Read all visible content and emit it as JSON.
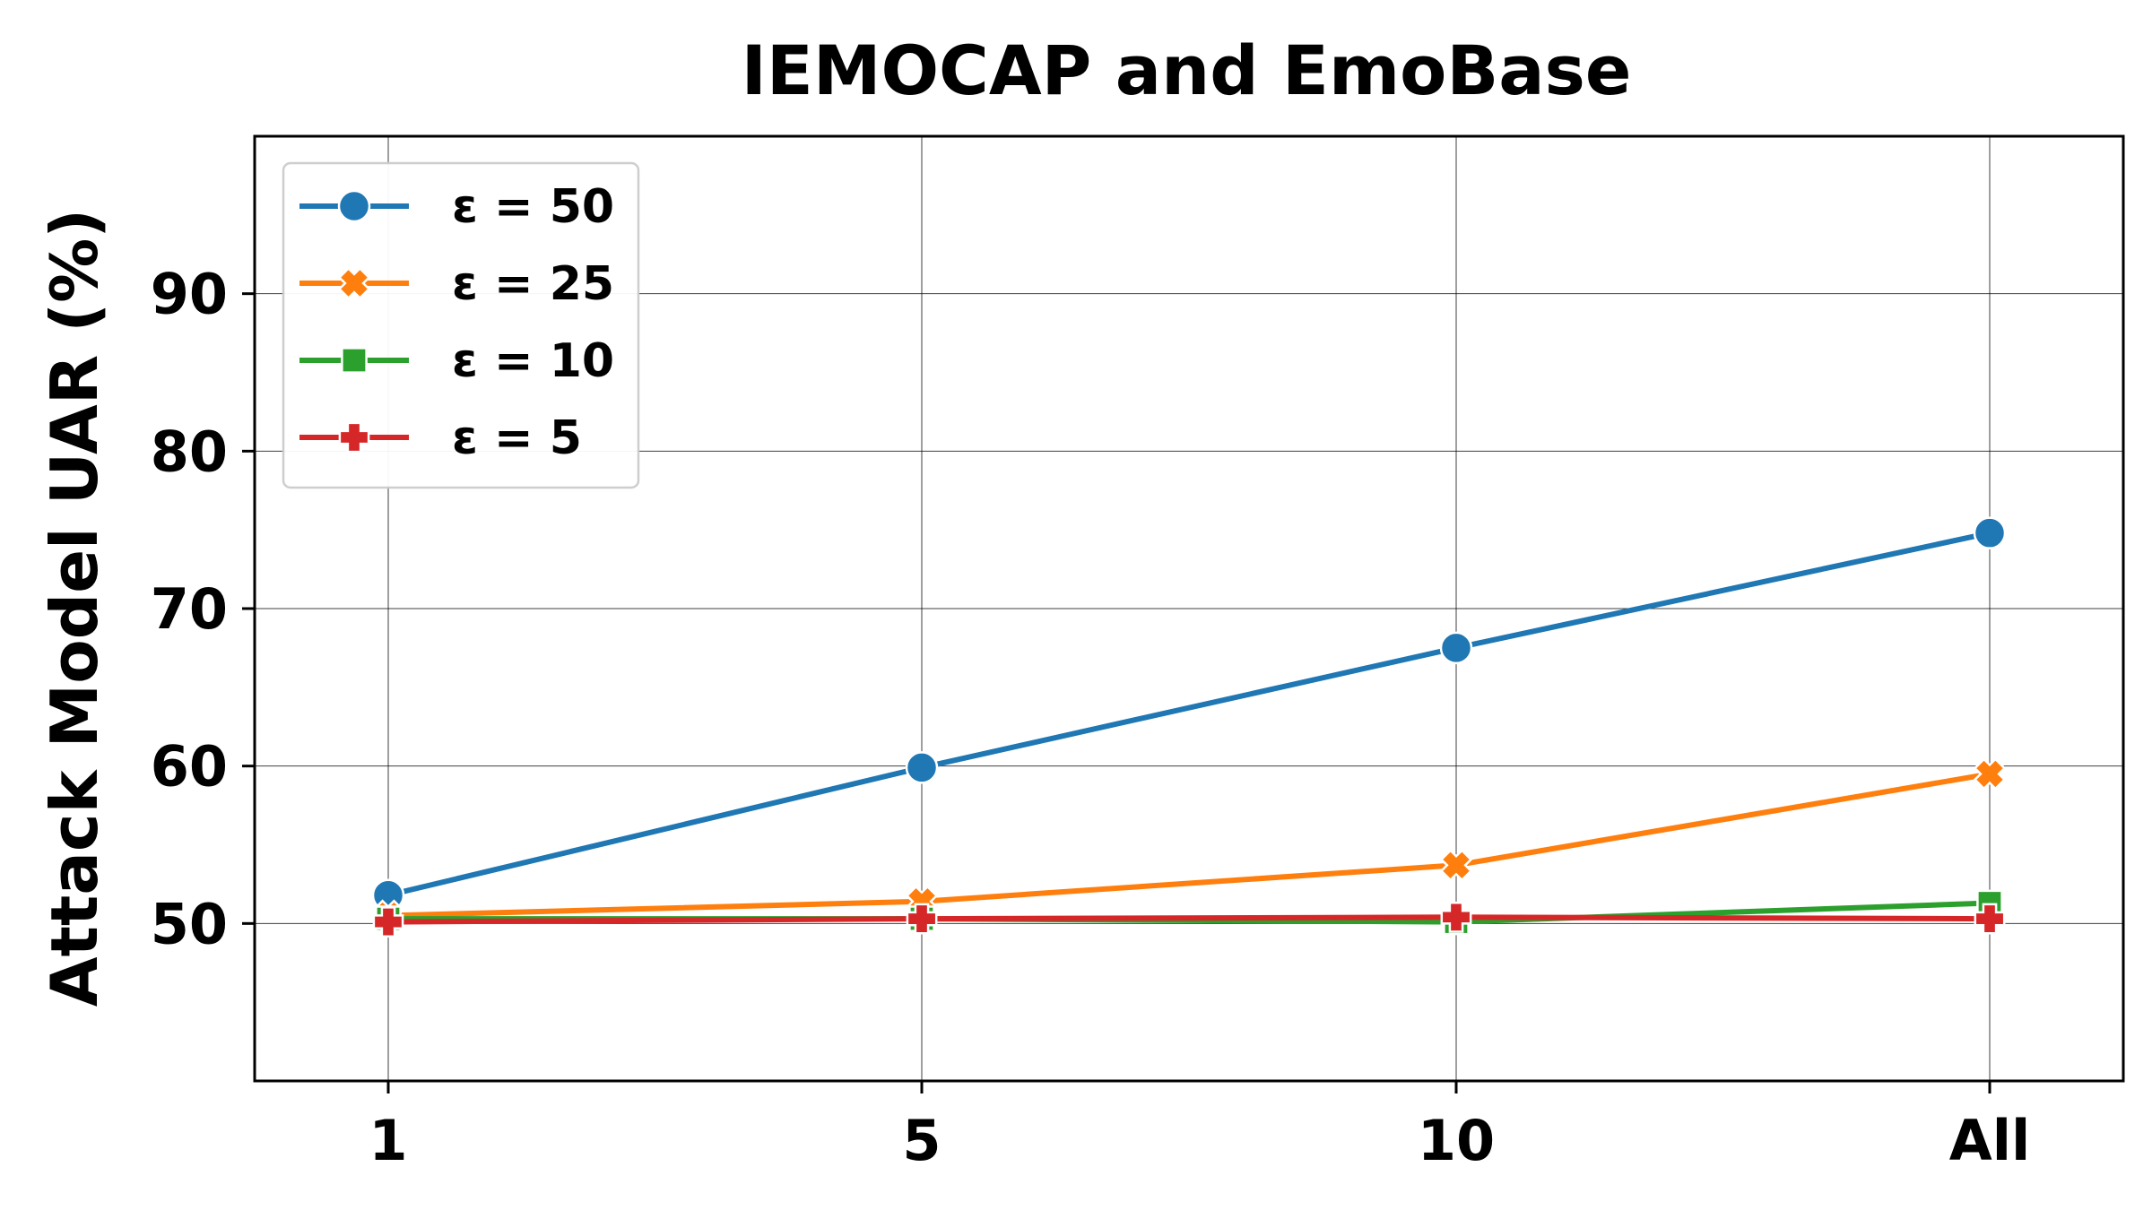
{
  "chart_data": {
    "type": "line",
    "title": "IEMOCAP and EmoBase",
    "xlabel": "",
    "ylabel": "Attack Model UAR (%)",
    "categories": [
      "1",
      "5",
      "10",
      "All"
    ],
    "ylim": [
      40,
      100
    ],
    "yticks": [
      50,
      60,
      70,
      80,
      90
    ],
    "grid": true,
    "legend_position": "top-left",
    "series": [
      {
        "name": "ε = 50",
        "color": "#1f77b4",
        "marker": "circle",
        "values": [
          51.8,
          59.9,
          67.5,
          74.8
        ]
      },
      {
        "name": "ε = 25",
        "color": "#ff7f0e",
        "marker": "x",
        "values": [
          50.5,
          51.4,
          53.7,
          59.5
        ]
      },
      {
        "name": "ε = 10",
        "color": "#2ca02c",
        "marker": "square",
        "values": [
          50.3,
          50.3,
          50.1,
          51.3
        ]
      },
      {
        "name": "ε = 5",
        "color": "#d62728",
        "marker": "plus",
        "values": [
          50.1,
          50.3,
          50.4,
          50.3
        ]
      }
    ]
  }
}
